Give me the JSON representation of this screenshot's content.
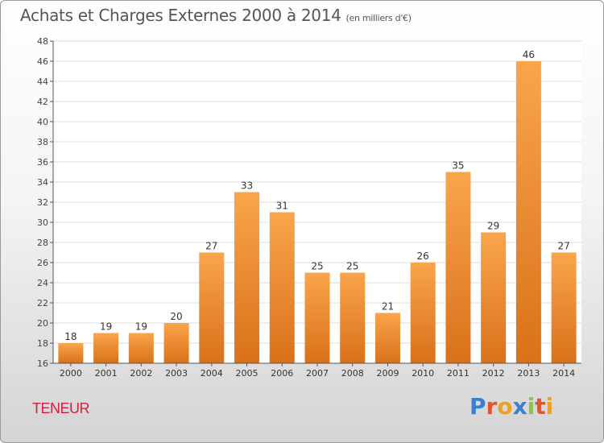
{
  "header": {
    "title": "Achats et Charges Externes 2000 à 2014",
    "subtitle": "(en milliers d'€)"
  },
  "commune": "TENEUR",
  "logo": {
    "text": "Proxiti",
    "letters": [
      {
        "ch": "P",
        "color": "#3a7fd0"
      },
      {
        "ch": "r",
        "color": "#e4562a"
      },
      {
        "ch": "o",
        "color": "#f0a020"
      },
      {
        "ch": "x",
        "color": "#3a7fd0"
      },
      {
        "ch": "i",
        "color": "#8cc63f"
      },
      {
        "ch": "t",
        "color": "#e4562a"
      },
      {
        "ch": "i",
        "color": "#f0a020"
      }
    ]
  },
  "colors": {
    "bar_top": "#f9a54c",
    "bar_bottom": "#d9711a",
    "grid": "#dddddd",
    "axis": "#555555"
  },
  "chart_data": {
    "type": "bar",
    "categories": [
      "2000",
      "2001",
      "2002",
      "2003",
      "2004",
      "2005",
      "2006",
      "2007",
      "2008",
      "2009",
      "2010",
      "2011",
      "2012",
      "2013",
      "2014"
    ],
    "values": [
      18,
      19,
      19,
      20,
      27,
      33,
      31,
      25,
      25,
      21,
      26,
      35,
      29,
      46,
      27
    ],
    "ylim": [
      16,
      48
    ],
    "yticks": [
      16,
      18,
      20,
      22,
      24,
      26,
      28,
      30,
      32,
      34,
      36,
      38,
      40,
      42,
      44,
      46,
      48
    ],
    "grid": true,
    "legend": "none"
  }
}
